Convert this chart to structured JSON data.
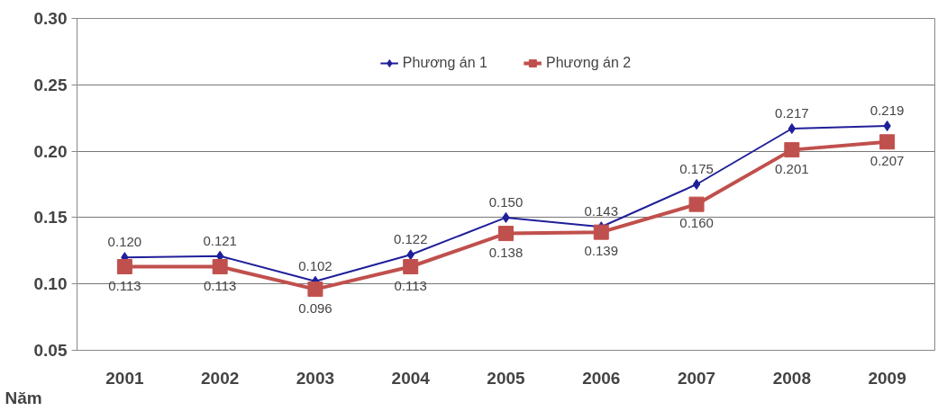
{
  "chart_data": {
    "type": "line",
    "xlabel": "Năm",
    "categories": [
      "2001",
      "2002",
      "2003",
      "2004",
      "2005",
      "2006",
      "2007",
      "2008",
      "2009"
    ],
    "series": [
      {
        "name": "Phương án 1",
        "color": "#1f1f9a",
        "marker": "diamond",
        "values": [
          0.12,
          0.121,
          0.102,
          0.122,
          0.15,
          0.143,
          0.175,
          0.217,
          0.219
        ],
        "value_labels": [
          "0.120",
          "0.121",
          "0.102",
          "0.122",
          "0.150",
          "0.143",
          "0.175",
          "0.217",
          "0.219"
        ]
      },
      {
        "name": "Phương án 2",
        "color": "#c0504d",
        "marker": "square",
        "values": [
          0.113,
          0.113,
          0.096,
          0.113,
          0.138,
          0.139,
          0.16,
          0.201,
          0.207
        ],
        "value_labels": [
          "0.113",
          "0.113",
          "0.096",
          "0.113",
          "0.138",
          "0.139",
          "0.160",
          "0.201",
          "0.207"
        ]
      }
    ],
    "ylim": [
      0.05,
      0.3
    ],
    "yticks": [
      {
        "value": 0.05,
        "label": "0.05"
      },
      {
        "value": 0.1,
        "label": "0.10"
      },
      {
        "value": 0.15,
        "label": "0.15"
      },
      {
        "value": 0.2,
        "label": "0.20"
      },
      {
        "value": 0.25,
        "label": "0.25"
      },
      {
        "value": 0.3,
        "label": "0.30"
      }
    ],
    "grid": "y",
    "legend": "top",
    "line_style": "solid"
  }
}
